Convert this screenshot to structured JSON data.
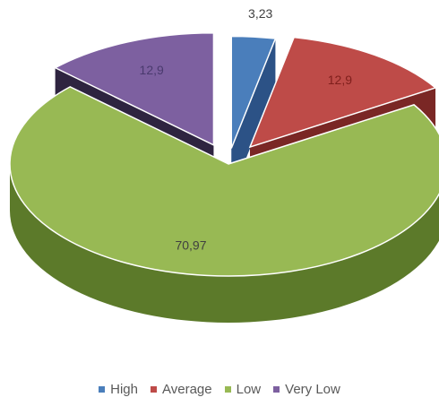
{
  "chart_data": {
    "type": "pie",
    "style": "3d-exploded",
    "categories": [
      "High",
      "Average",
      "Low",
      "Very Low"
    ],
    "values": [
      3.23,
      12.9,
      70.97,
      12.9
    ],
    "data_labels": [
      "3,23",
      "12,9",
      "70,97",
      "12,9"
    ],
    "colors": [
      "#4a7ebb",
      "#be4b48",
      "#98b954",
      "#7d60a0"
    ],
    "side_colors": [
      "#2c5286",
      "#7a2725",
      "#5c7a2a",
      "#2e2440"
    ],
    "label_colors": [
      "#404040",
      "#7f1f1c",
      "#404040",
      "#4a3a6e"
    ],
    "legend_position": "bottom"
  }
}
